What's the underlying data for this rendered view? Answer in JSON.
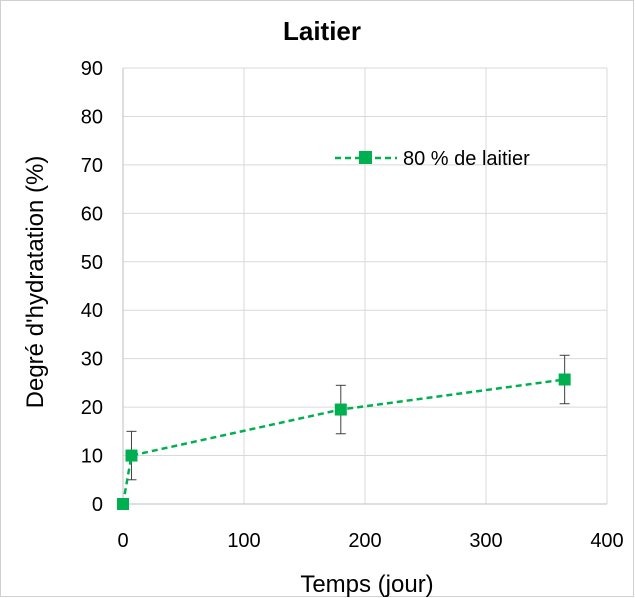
{
  "chart_data": {
    "type": "line",
    "title": "Laitier",
    "xlabel": "Temps (jour)",
    "ylabel": "Degré d'hydratation (%)",
    "xlim": [
      0,
      400
    ],
    "ylim": [
      0,
      90
    ],
    "xticks": [
      0,
      100,
      200,
      300,
      400
    ],
    "yticks": [
      0,
      10,
      20,
      30,
      40,
      50,
      60,
      70,
      80,
      90
    ],
    "xtick_labels": [
      "0",
      "100",
      "200",
      "300",
      "400"
    ],
    "ytick_labels": [
      "0",
      "10",
      "20",
      "30",
      "40",
      "50",
      "60",
      "70",
      "80",
      "90"
    ],
    "grid": true,
    "legend_position": "top-right",
    "series": [
      {
        "name": "80 % de laitier",
        "color": "#00b050",
        "line_style": "dashed",
        "marker": "square",
        "x": [
          0,
          7,
          180,
          365
        ],
        "y": [
          0,
          10,
          19.5,
          25.7
        ],
        "error": [
          0,
          5,
          5,
          5
        ]
      }
    ]
  }
}
